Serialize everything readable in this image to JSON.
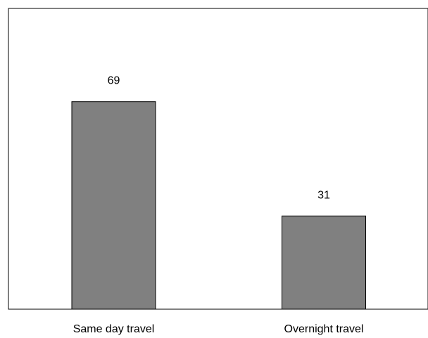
{
  "chart_data": {
    "type": "bar",
    "categories": [
      "Same day travel",
      "Overnight travel"
    ],
    "values": [
      69,
      31
    ],
    "data_labels": [
      "69",
      "31"
    ],
    "title": "",
    "xlabel": "",
    "ylabel": "",
    "ylim": [
      0,
      100
    ],
    "grid": false,
    "legend": "none",
    "colors": {
      "bar_fill": "#808080",
      "bar_stroke": "#000000",
      "frame": "#000000",
      "background": "#ffffff"
    }
  }
}
